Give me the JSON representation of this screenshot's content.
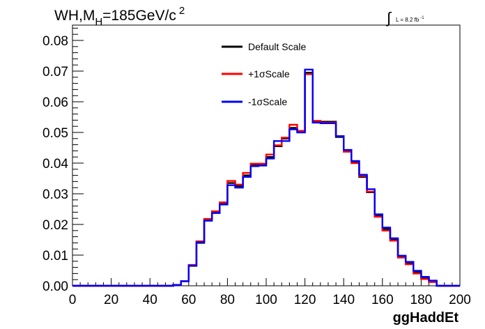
{
  "chart_data": {
    "type": "line",
    "style": "step-histogram",
    "title": {
      "main": "WH,M",
      "sub": "H",
      "rest": "=185GeV/c",
      "sup": "2"
    },
    "lumi": {
      "symbol": "∫",
      "text": "L = 8.2 fb",
      "sup": "-1"
    },
    "xlabel": "ggHaddEt",
    "ylabel": "",
    "xlim": [
      0,
      200
    ],
    "ylim": [
      0,
      0.085
    ],
    "bin_width": 4,
    "x_ticks": [
      "0",
      "20",
      "40",
      "60",
      "80",
      "100",
      "120",
      "140",
      "160",
      "180",
      "200"
    ],
    "y_ticks": [
      "0.00",
      "0.01",
      "0.02",
      "0.03",
      "0.04",
      "0.05",
      "0.06",
      "0.07",
      "0.08"
    ],
    "legend_position": "top-center",
    "series": [
      {
        "name": "Default Scale",
        "color": "#000000",
        "values": [
          0,
          0,
          0,
          0,
          0,
          0,
          0,
          0,
          0,
          0,
          0,
          0,
          0,
          0.0003,
          0.0015,
          0.0065,
          0.014,
          0.0215,
          0.024,
          0.027,
          0.0335,
          0.0325,
          0.036,
          0.0395,
          0.0395,
          0.042,
          0.0455,
          0.048,
          0.0515,
          0.0505,
          0.0695,
          0.0535,
          0.0535,
          0.0535,
          0.0485,
          0.044,
          0.0405,
          0.0355,
          0.0305,
          0.023,
          0.0185,
          0.015,
          0.0095,
          0.0075,
          0.0045,
          0.0025,
          0.0015,
          0,
          0,
          0
        ]
      },
      {
        "name": "+1σScale",
        "color": "#ff0000",
        "values": [
          0,
          0,
          0,
          0,
          0,
          0,
          0,
          0,
          0,
          0,
          0,
          0,
          0,
          0.0003,
          0.0015,
          0.0068,
          0.0145,
          0.0218,
          0.0243,
          0.0272,
          0.0342,
          0.033,
          0.0368,
          0.0398,
          0.0398,
          0.0428,
          0.0458,
          0.0483,
          0.0525,
          0.0505,
          0.069,
          0.0538,
          0.0532,
          0.0532,
          0.0488,
          0.0437,
          0.04,
          0.0358,
          0.0307,
          0.0225,
          0.018,
          0.0147,
          0.0092,
          0.007,
          0.004,
          0.0022,
          0.0012,
          0,
          0,
          0
        ]
      },
      {
        "name": "-1σScale",
        "color": "#0000ff",
        "values": [
          0,
          0,
          0,
          0,
          0,
          0,
          0,
          0,
          0,
          0,
          0,
          0,
          0,
          0.0003,
          0.0015,
          0.0066,
          0.0142,
          0.0212,
          0.0237,
          0.0265,
          0.0328,
          0.032,
          0.0355,
          0.039,
          0.0392,
          0.0415,
          0.0472,
          0.0472,
          0.051,
          0.05,
          0.0705,
          0.0532,
          0.053,
          0.053,
          0.0488,
          0.0443,
          0.0407,
          0.0362,
          0.0315,
          0.0233,
          0.019,
          0.0155,
          0.0098,
          0.0078,
          0.0049,
          0.0029,
          0.0017,
          0,
          0,
          0
        ]
      }
    ]
  }
}
